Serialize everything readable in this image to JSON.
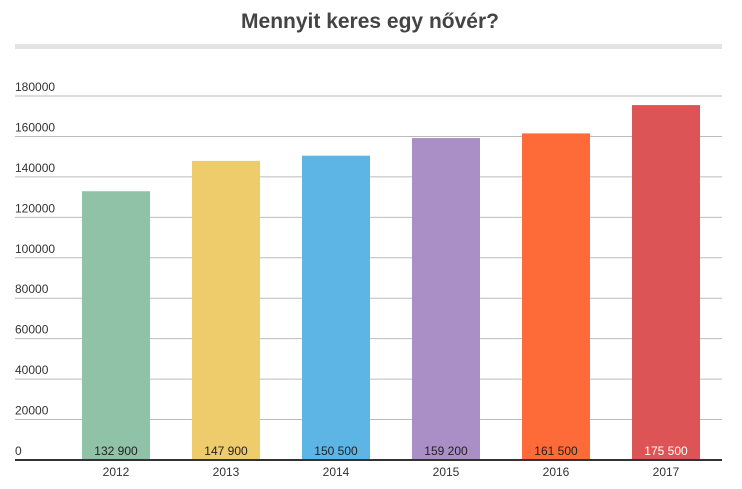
{
  "chart_data": {
    "type": "bar",
    "title": "Mennyit keres egy nővér?",
    "categories": [
      "2012",
      "2013",
      "2014",
      "2015",
      "2016",
      "2017"
    ],
    "values": [
      132900,
      147900,
      150500,
      159200,
      161500,
      175500
    ],
    "value_labels": [
      "132 900",
      "147 900",
      "150 500",
      "159 200",
      "161 500",
      "175 500"
    ],
    "colors": [
      "#8fc2a7",
      "#eecb6b",
      "#5db5e5",
      "#a98fc6",
      "#fe6b38",
      "#dd5456"
    ],
    "value_label_colors": [
      "#222222",
      "#222222",
      "#222222",
      "#222222",
      "#222222",
      "#ffffff"
    ],
    "ylim": [
      0,
      180000
    ],
    "yticks": [
      0,
      20000,
      40000,
      60000,
      80000,
      100000,
      120000,
      140000,
      160000,
      180000
    ],
    "grid": true
  }
}
